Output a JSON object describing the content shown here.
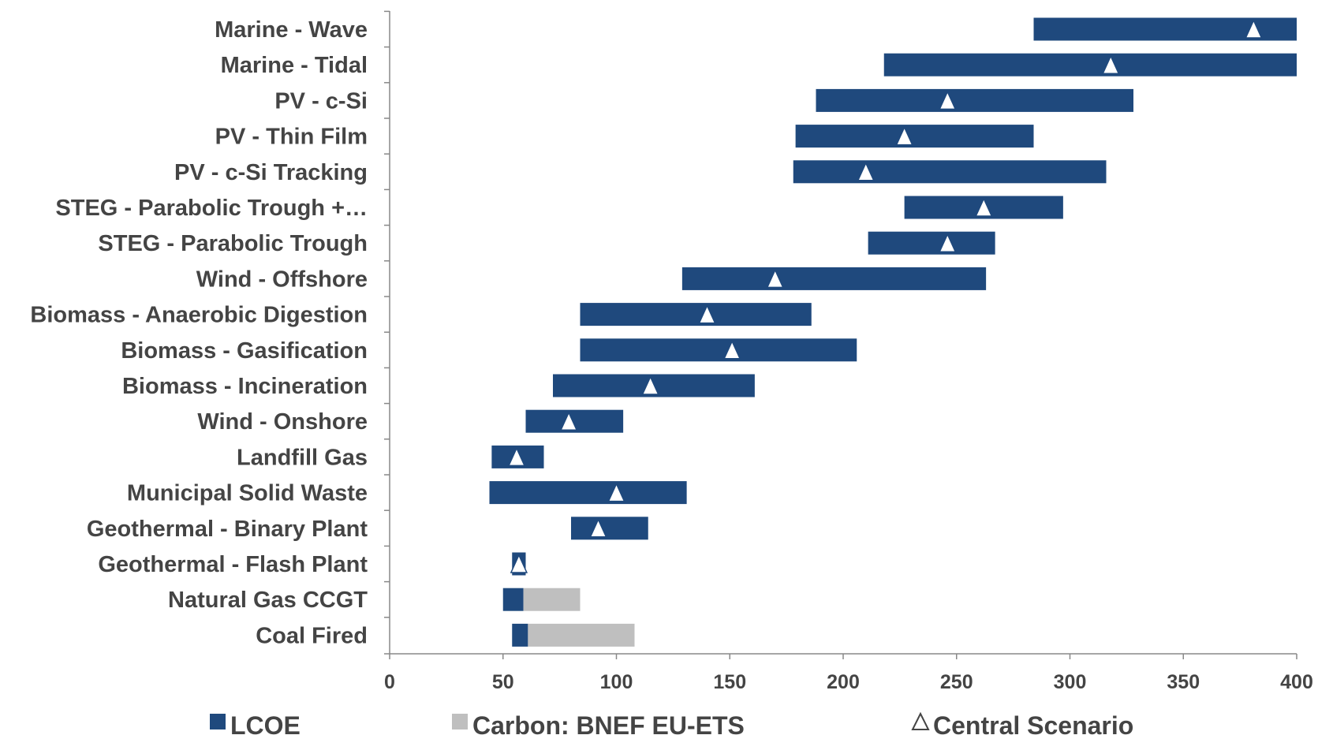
{
  "colors": {
    "lcoe": "#1f497d",
    "carbon": "#bfbfbf",
    "text": "#444444",
    "axis": "#888888",
    "marker_fill": "#ffffff",
    "marker_stroke": "#1f497d"
  },
  "chart_data": {
    "type": "bar",
    "orientation": "horizontal",
    "title": "",
    "xlabel": "",
    "ylabel": "",
    "xlim": [
      0,
      400
    ],
    "xticks": [
      "0",
      "50",
      "100",
      "150",
      "200",
      "250",
      "300",
      "350",
      "400"
    ],
    "grid": false,
    "legend_placement": "bottom",
    "legend": [
      {
        "key": "lcoe",
        "label": "LCOE"
      },
      {
        "key": "carbon",
        "label": "Carbon: BNEF EU-ETS"
      },
      {
        "key": "central",
        "label": "Central Scenario"
      }
    ],
    "categories": [
      {
        "label": "Marine - Wave",
        "lcoe": [
          284,
          400
        ],
        "central": 381
      },
      {
        "label": "Marine - Tidal",
        "lcoe": [
          218,
          400
        ],
        "central": 318
      },
      {
        "label": "PV - c-Si",
        "lcoe": [
          188,
          328
        ],
        "central": 246
      },
      {
        "label": "PV - Thin Film",
        "lcoe": [
          179,
          284
        ],
        "central": 227
      },
      {
        "label": "PV - c-Si Tracking",
        "lcoe": [
          178,
          316
        ],
        "central": 210
      },
      {
        "label": "STEG - Parabolic Trough +…",
        "lcoe": [
          227,
          297
        ],
        "central": 262
      },
      {
        "label": "STEG - Parabolic Trough",
        "lcoe": [
          211,
          267
        ],
        "central": 246
      },
      {
        "label": "Wind - Offshore",
        "lcoe": [
          129,
          263
        ],
        "central": 170
      },
      {
        "label": "Biomass - Anaerobic Digestion",
        "lcoe": [
          84,
          186
        ],
        "central": 140
      },
      {
        "label": "Biomass - Gasification",
        "lcoe": [
          84,
          206
        ],
        "central": 151
      },
      {
        "label": "Biomass - Incineration",
        "lcoe": [
          72,
          161
        ],
        "central": 115
      },
      {
        "label": "Wind - Onshore",
        "lcoe": [
          60,
          103
        ],
        "central": 79
      },
      {
        "label": "Landfill Gas",
        "lcoe": [
          45,
          68
        ],
        "central": 56
      },
      {
        "label": "Municipal Solid Waste",
        "lcoe": [
          44,
          131
        ],
        "central": 100
      },
      {
        "label": "Geothermal - Binary Plant",
        "lcoe": [
          80,
          114
        ],
        "central": 92
      },
      {
        "label": "Geothermal - Flash Plant",
        "lcoe": [
          54,
          60
        ],
        "central": 57
      },
      {
        "label": "Natural Gas CCGT",
        "lcoe": [
          50,
          59
        ],
        "carbon": [
          59,
          84
        ]
      },
      {
        "label": "Coal Fired",
        "lcoe": [
          54,
          61
        ],
        "carbon": [
          61,
          108
        ]
      }
    ]
  }
}
